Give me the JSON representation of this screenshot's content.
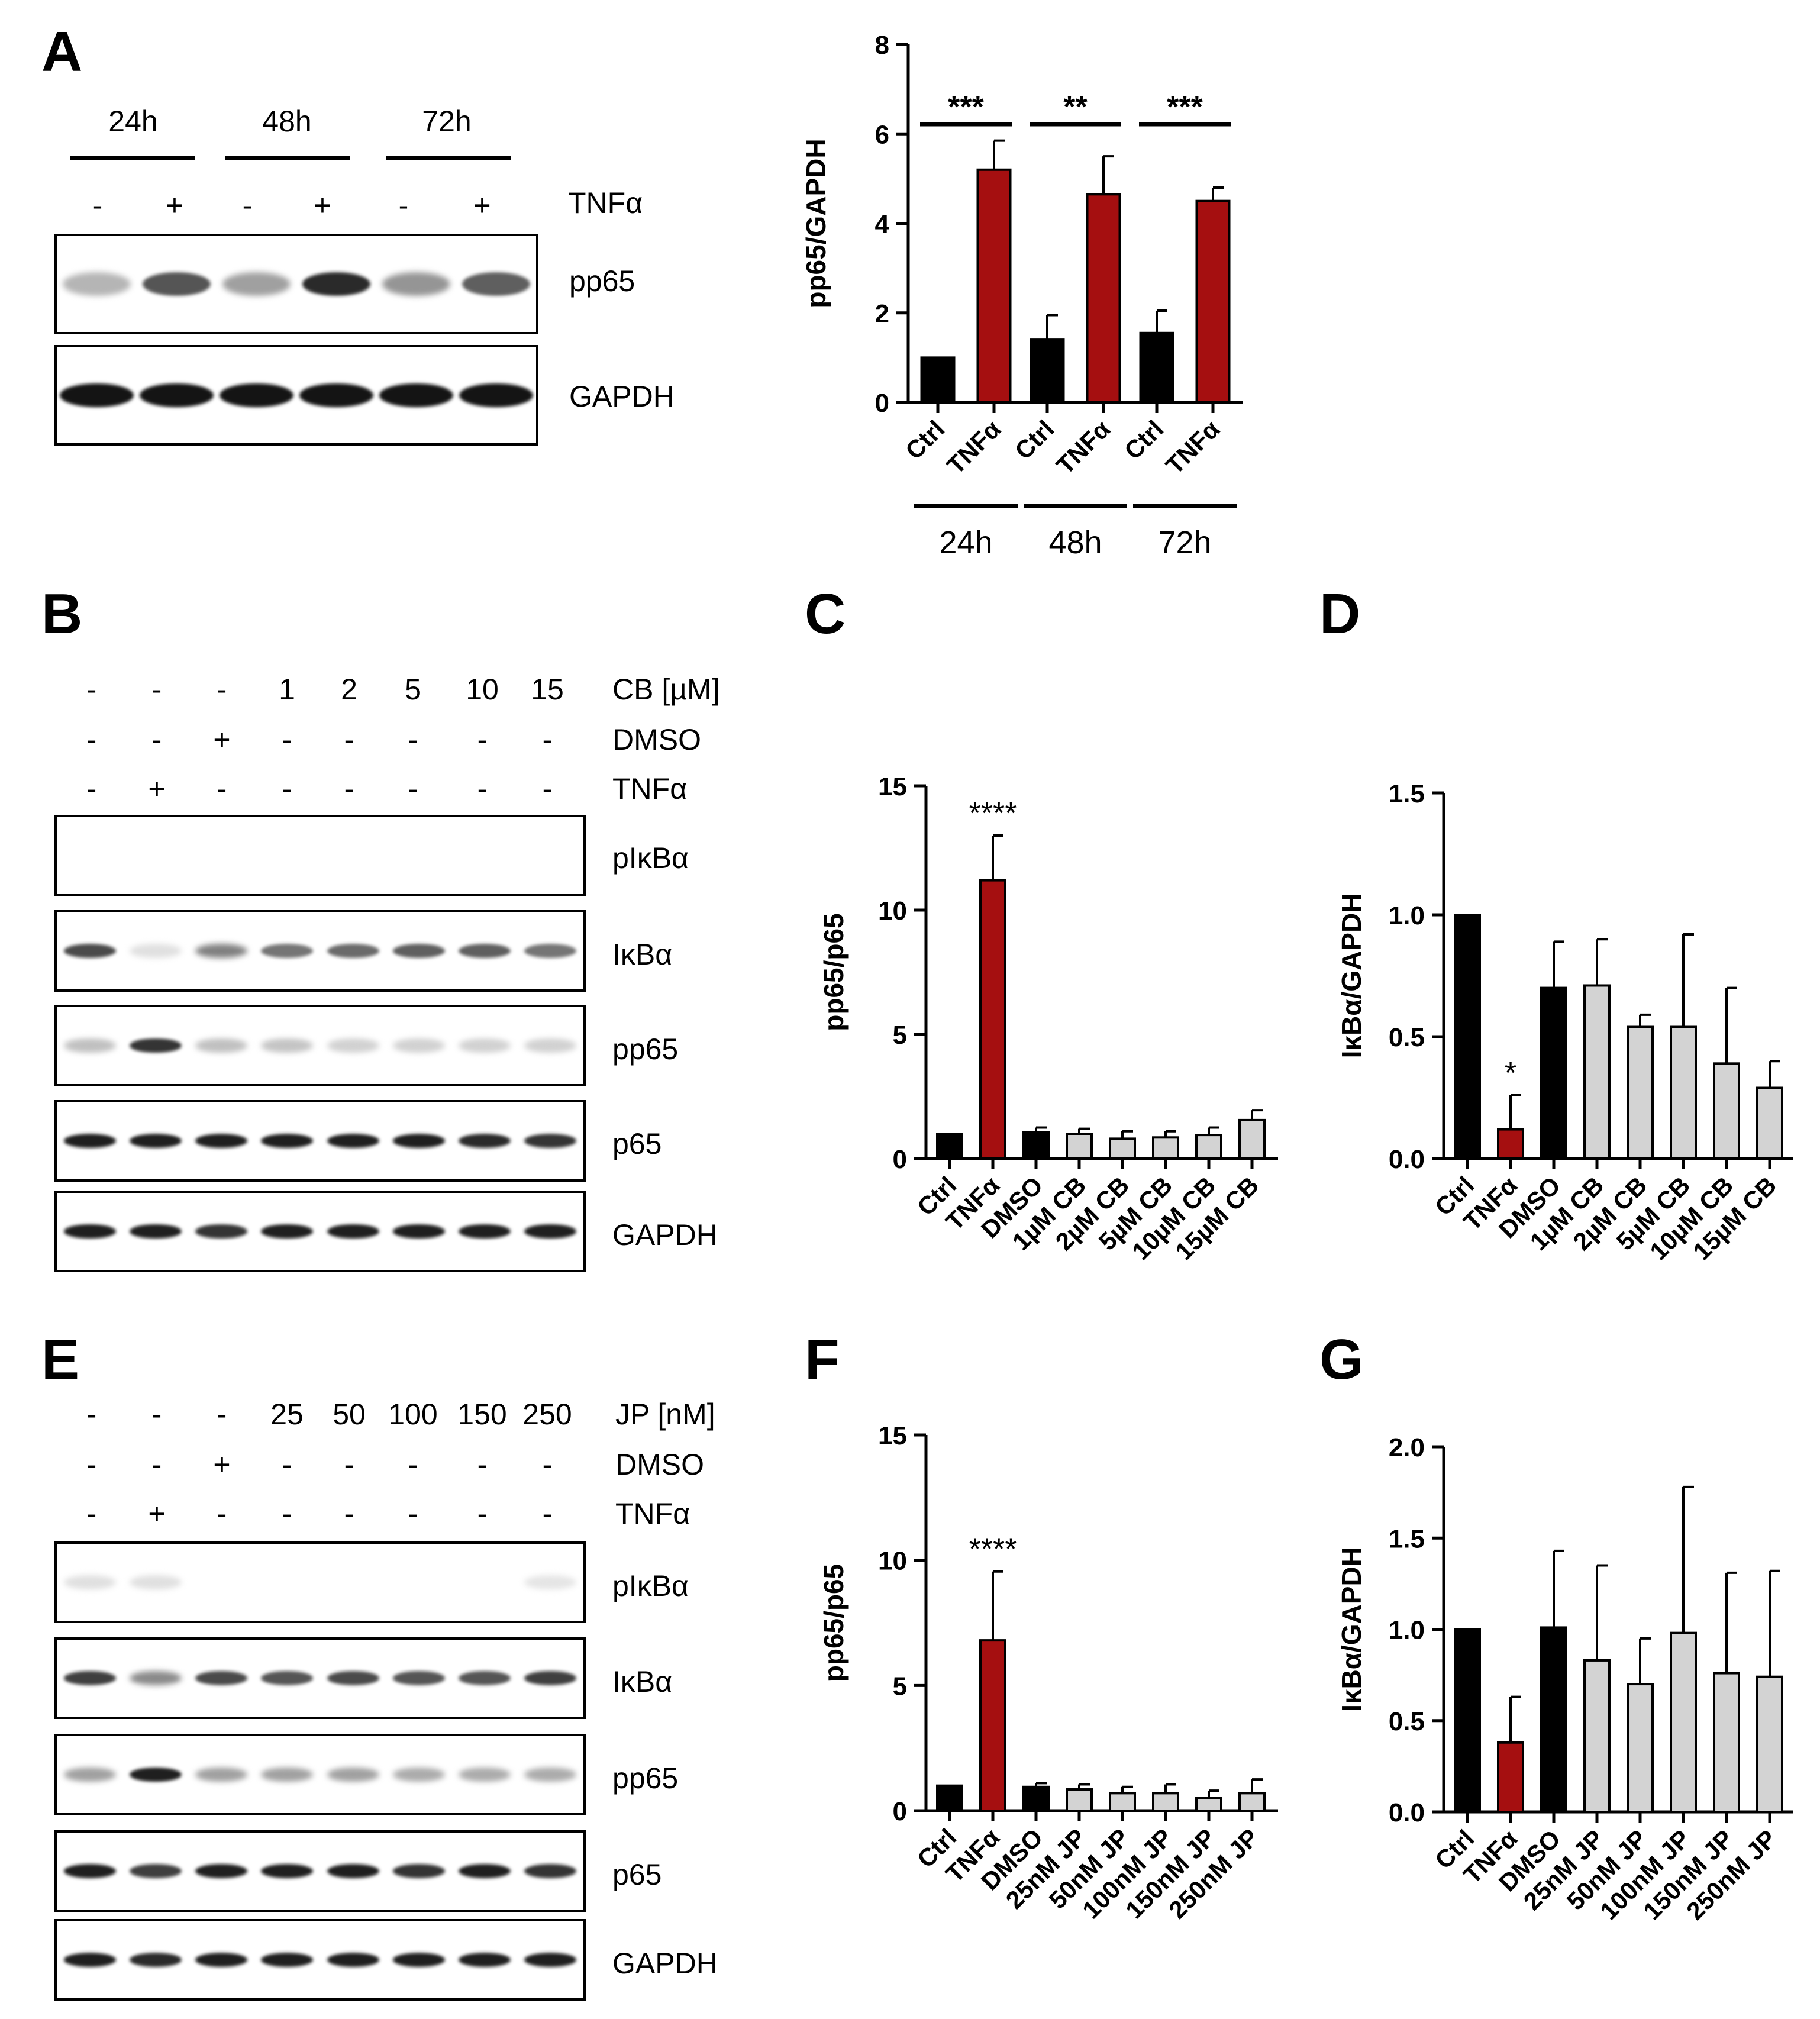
{
  "panels": {
    "A": "A",
    "B": "B",
    "C": "C",
    "D": "D",
    "E": "E",
    "F": "F",
    "G": "G"
  },
  "colors": {
    "ctrl": "#000000",
    "tnf": "#a50f10",
    "treat": "#d3d3d3"
  },
  "blotA": {
    "times": [
      "24h",
      "48h",
      "72h"
    ],
    "tnf_row": [
      "-",
      "+",
      "-",
      "+",
      "-",
      "+"
    ],
    "tnf_label": "TNFα",
    "labels": {
      "pp65": "pp65",
      "gapdh": "GAPDH"
    },
    "band_intensity": {
      "pp65": [
        0.25,
        0.7,
        0.35,
        0.9,
        0.4,
        0.65
      ],
      "gapdh": [
        1,
        1,
        1,
        1,
        1,
        1
      ]
    }
  },
  "blotB": {
    "cb_row": [
      "-",
      "-",
      "-",
      "1",
      "2",
      "5",
      "10",
      "15"
    ],
    "cb_label": "CB [µM]",
    "dmso_row": [
      "-",
      "-",
      "+",
      "-",
      "-",
      "-",
      "-",
      "-"
    ],
    "dmso_label": "DMSO",
    "tnf_row": [
      "-",
      "+",
      "-",
      "-",
      "-",
      "-",
      "-",
      "-"
    ],
    "tnf_label": "TNFα",
    "labels": {
      "pikba": "pIκBα",
      "ikba": "IκBα",
      "pp65": "pp65",
      "p65": "p65",
      "gapdh": "GAPDH"
    },
    "band_intensity": {
      "pikba": [
        0,
        0,
        0,
        0,
        0,
        0,
        0,
        0
      ],
      "ikba": [
        0.75,
        0.05,
        0.5,
        0.55,
        0.6,
        0.65,
        0.65,
        0.55
      ],
      "pp65": [
        0.2,
        0.85,
        0.2,
        0.18,
        0.12,
        0.12,
        0.12,
        0.12
      ],
      "p65": [
        0.95,
        0.95,
        0.95,
        0.95,
        0.95,
        0.95,
        0.9,
        0.85
      ],
      "gapdh": [
        0.95,
        0.95,
        0.85,
        0.95,
        0.95,
        0.95,
        0.95,
        0.95
      ]
    }
  },
  "blotE": {
    "jp_row": [
      "-",
      "-",
      "-",
      "25",
      "50",
      "100",
      "150",
      "250"
    ],
    "jp_label": "JP [nM]",
    "dmso_row": [
      "-",
      "-",
      "+",
      "-",
      "-",
      "-",
      "-",
      "-"
    ],
    "dmso_label": "DMSO",
    "tnf_row": [
      "-",
      "+",
      "-",
      "-",
      "-",
      "-",
      "-",
      "-"
    ],
    "tnf_label": "TNFα",
    "labels": {
      "pikba": "pIκBα",
      "ikba": "IκBα",
      "pp65": "pp65",
      "p65": "p65",
      "gapdh": "GAPDH"
    },
    "band_intensity": {
      "pikba": [
        0.05,
        0.05,
        0,
        0,
        0,
        0,
        0,
        0.03
      ],
      "ikba": [
        0.8,
        0.45,
        0.75,
        0.7,
        0.75,
        0.7,
        0.7,
        0.8
      ],
      "pp65": [
        0.35,
        0.95,
        0.35,
        0.35,
        0.35,
        0.3,
        0.3,
        0.3
      ],
      "p65": [
        0.95,
        0.8,
        0.95,
        0.95,
        0.95,
        0.85,
        0.95,
        0.85
      ],
      "gapdh": [
        0.95,
        0.9,
        0.95,
        0.95,
        0.95,
        0.95,
        0.95,
        0.95
      ]
    }
  },
  "chart_data": [
    {
      "id": "A",
      "type": "bar",
      "ylabel": "pp65/GAPDH",
      "ylim": [
        0,
        8
      ],
      "yticks": [
        0,
        2,
        4,
        6,
        8
      ],
      "categories": [
        "Ctrl",
        "TNFα",
        "Ctrl",
        "TNFα",
        "Ctrl",
        "TNFα"
      ],
      "groups": [
        "24h",
        "48h",
        "72h"
      ],
      "values": [
        1.0,
        5.2,
        1.4,
        4.65,
        1.55,
        4.5
      ],
      "errors": [
        0,
        0.65,
        0.55,
        0.85,
        0.5,
        0.3
      ],
      "color_keys": [
        "ctrl",
        "tnf",
        "ctrl",
        "tnf",
        "ctrl",
        "tnf"
      ],
      "significance": [
        "***",
        "**",
        "***"
      ]
    },
    {
      "id": "C",
      "type": "bar",
      "ylabel": "pp65/p65",
      "ylim": [
        0,
        15
      ],
      "yticks": [
        0,
        5,
        10,
        15
      ],
      "categories": [
        "Ctrl",
        "TNFα",
        "DMSO",
        "1µM CB",
        "2µM CB",
        "5µM CB",
        "10µM CB",
        "15µM CB"
      ],
      "values": [
        1.0,
        11.2,
        1.05,
        1.0,
        0.8,
        0.85,
        0.95,
        1.55
      ],
      "errors": [
        0,
        1.8,
        0.2,
        0.2,
        0.3,
        0.25,
        0.3,
        0.4
      ],
      "color_keys": [
        "ctrl",
        "tnf",
        "ctrl",
        "treat",
        "treat",
        "treat",
        "treat",
        "treat"
      ],
      "annotations": [
        {
          "index": 1,
          "text": "****"
        }
      ]
    },
    {
      "id": "D",
      "type": "bar",
      "ylabel": "IκBα/GAPDH",
      "ylim": [
        0,
        1.5
      ],
      "yticks": [
        "0.0",
        "0.5",
        "1.0",
        "1.5"
      ],
      "categories": [
        "Ctrl",
        "TNFα",
        "DMSO",
        "1µM CB",
        "2µM CB",
        "5µM CB",
        "10µM CB",
        "15µM CB"
      ],
      "values": [
        1.0,
        0.12,
        0.7,
        0.71,
        0.54,
        0.54,
        0.39,
        0.29
      ],
      "errors": [
        0,
        0.14,
        0.19,
        0.19,
        0.05,
        0.38,
        0.31,
        0.11
      ],
      "color_keys": [
        "ctrl",
        "tnf",
        "ctrl",
        "treat",
        "treat",
        "treat",
        "treat",
        "treat"
      ],
      "annotations": [
        {
          "index": 1,
          "text": "*"
        }
      ]
    },
    {
      "id": "F",
      "type": "bar",
      "ylabel": "pp65/p65",
      "ylim": [
        0,
        15
      ],
      "yticks": [
        0,
        5,
        10,
        15
      ],
      "categories": [
        "Ctrl",
        "TNFα",
        "DMSO",
        "25nM JP",
        "50nM JP",
        "100nM JP",
        "150nM JP",
        "250nM JP"
      ],
      "values": [
        1.0,
        6.8,
        0.95,
        0.85,
        0.7,
        0.7,
        0.5,
        0.7
      ],
      "errors": [
        0,
        2.75,
        0.15,
        0.2,
        0.25,
        0.35,
        0.3,
        0.55
      ],
      "color_keys": [
        "ctrl",
        "tnf",
        "ctrl",
        "treat",
        "treat",
        "treat",
        "treat",
        "treat"
      ],
      "annotations": [
        {
          "index": 1,
          "text": "****"
        }
      ]
    },
    {
      "id": "G",
      "type": "bar",
      "ylabel": "IκBα/GAPDH",
      "ylim": [
        0,
        2.0
      ],
      "yticks": [
        "0.0",
        "0.5",
        "1.0",
        "1.5",
        "2.0"
      ],
      "categories": [
        "Ctrl",
        "TNFα",
        "DMSO",
        "25nM JP",
        "50nM JP",
        "100nM JP",
        "150nM JP",
        "250nM JP"
      ],
      "values": [
        1.0,
        0.38,
        1.01,
        0.83,
        0.7,
        0.98,
        0.76,
        0.74
      ],
      "errors": [
        0,
        0.25,
        0.42,
        0.52,
        0.25,
        0.8,
        0.55,
        0.58
      ],
      "color_keys": [
        "ctrl",
        "tnf",
        "ctrl",
        "treat",
        "treat",
        "treat",
        "treat",
        "treat"
      ],
      "annotations": []
    }
  ]
}
